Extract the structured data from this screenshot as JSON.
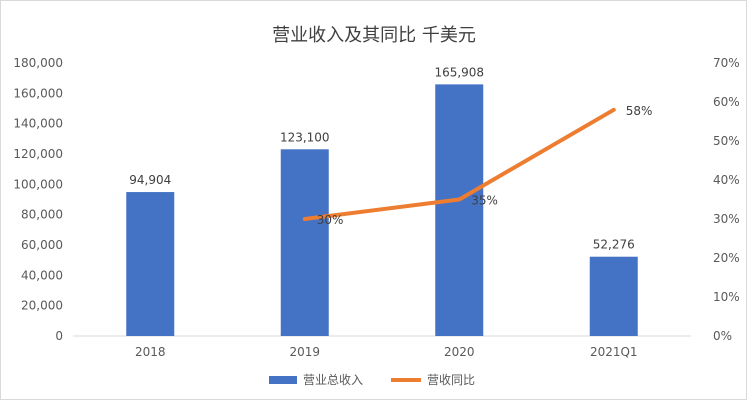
{
  "chart_data": {
    "type": "bar",
    "title": "营业收入及其同比 千美元",
    "categories": [
      "2018",
      "2019",
      "2020",
      "2021Q1"
    ],
    "series": [
      {
        "name": "营业总收入",
        "type": "bar",
        "axis": "left",
        "color": "#4472c4",
        "values": [
          94904,
          123100,
          165908,
          52276
        ],
        "labels": [
          "94,904",
          "123,100",
          "165,908",
          "52,276"
        ]
      },
      {
        "name": "营收同比",
        "type": "line",
        "axis": "right",
        "color": "#ed7d31",
        "values": [
          null,
          30,
          35,
          58
        ],
        "labels": [
          "",
          "30%",
          "35%",
          "58%"
        ]
      }
    ],
    "y_left": {
      "min": 0,
      "max": 180000,
      "step": 20000,
      "ticks": [
        "0",
        "20,000",
        "40,000",
        "60,000",
        "80,000",
        "100,000",
        "120,000",
        "140,000",
        "160,000",
        "180,000"
      ]
    },
    "y_right": {
      "min": 0,
      "max": 70,
      "step": 10,
      "ticks": [
        "0%",
        "10%",
        "20%",
        "30%",
        "40%",
        "50%",
        "60%",
        "70%"
      ]
    },
    "grid": false,
    "legend": "bottom"
  }
}
